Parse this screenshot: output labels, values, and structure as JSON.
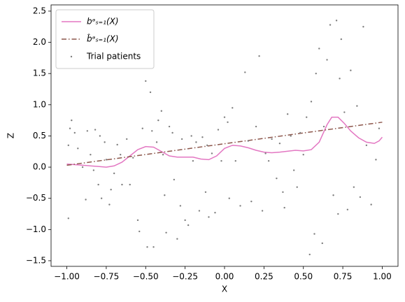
{
  "chart_data": {
    "type": "line_scatter",
    "xlabel": "X",
    "ylabel": "Z",
    "xlim": [
      -1.1,
      1.1
    ],
    "ylim": [
      -1.59,
      2.6
    ],
    "xticks": [
      {
        "value": -1,
        "label": "−1.00"
      },
      {
        "value": -0.75,
        "label": "−0.75"
      },
      {
        "value": -0.5,
        "label": "−0.50"
      },
      {
        "value": -0.25,
        "label": "−0.25"
      },
      {
        "value": 0,
        "label": "0.00"
      },
      {
        "value": 0.25,
        "label": "0.25"
      },
      {
        "value": 0.5,
        "label": "0.50"
      },
      {
        "value": 0.75,
        "label": "0.75"
      },
      {
        "value": 1,
        "label": "1.00"
      }
    ],
    "yticks": [
      {
        "value": -1.5,
        "label": "−1.5"
      },
      {
        "value": -1,
        "label": "−1.0"
      },
      {
        "value": -0.5,
        "label": "−0.5"
      },
      {
        "value": 0,
        "label": "0.0"
      },
      0.5,
      {
        "value": 1,
        "label": "1.0"
      },
      1.5,
      {
        "value": 2,
        "label": "2.0"
      },
      2.5
    ],
    "legend": "upper left",
    "series": [
      {
        "name": "bᵃₛ₌₁(X)",
        "kind": "line",
        "linestyle": "solid",
        "color": "#e377c2",
        "x": [
          -1,
          -0.9,
          -0.8,
          -0.75,
          -0.7,
          -0.65,
          -0.6,
          -0.55,
          -0.5,
          -0.45,
          -0.4,
          -0.35,
          -0.3,
          -0.2,
          -0.15,
          -0.1,
          -0.05,
          0,
          0.05,
          0.1,
          0.15,
          0.2,
          0.25,
          0.3,
          0.35,
          0.45,
          0.5,
          0.55,
          0.6,
          0.65,
          0.68,
          0.72,
          0.76,
          0.8,
          0.85,
          0.9,
          0.95,
          0.98,
          1.0
        ],
        "values": [
          0.05,
          0.03,
          0.01,
          0.0,
          0.02,
          0.08,
          0.18,
          0.28,
          0.33,
          0.32,
          0.25,
          0.18,
          0.16,
          0.16,
          0.13,
          0.12,
          0.18,
          0.3,
          0.35,
          0.34,
          0.31,
          0.27,
          0.24,
          0.23,
          0.24,
          0.27,
          0.26,
          0.28,
          0.4,
          0.68,
          0.8,
          0.8,
          0.7,
          0.58,
          0.47,
          0.4,
          0.38,
          0.42,
          0.48
        ]
      },
      {
        "name": "b̂ᵃₛ₌₁(X)",
        "kind": "line",
        "linestyle": "dashdot",
        "color": "#8c564b",
        "x": [
          -1,
          0,
          1
        ],
        "values": [
          0.03,
          0.375,
          0.72
        ]
      },
      {
        "name": "Trial patients",
        "kind": "scatter",
        "color": "#7f7f7f",
        "x": [
          -0.99,
          -0.98,
          -0.97,
          -0.99,
          -0.95,
          -0.93,
          -0.9,
          -0.88,
          -0.87,
          -0.85,
          -0.83,
          -0.82,
          -0.8,
          -0.79,
          -0.78,
          -0.76,
          -0.75,
          -0.73,
          -0.72,
          -0.7,
          -0.68,
          -0.66,
          -0.65,
          -0.62,
          -0.6,
          -0.58,
          -0.55,
          -0.54,
          -0.52,
          -0.5,
          -0.49,
          -0.47,
          -0.46,
          -0.45,
          -0.43,
          -0.42,
          -0.4,
          -0.39,
          -0.38,
          -0.37,
          -0.35,
          -0.33,
          -0.32,
          -0.3,
          -0.28,
          -0.27,
          -0.25,
          -0.23,
          -0.21,
          -0.2,
          -0.18,
          -0.16,
          -0.14,
          -0.12,
          -0.11,
          -0.1,
          -0.08,
          -0.06,
          -0.04,
          -0.02,
          0.0,
          0.02,
          0.03,
          0.05,
          0.07,
          0.1,
          0.13,
          0.15,
          0.17,
          0.2,
          0.22,
          0.24,
          0.26,
          0.28,
          0.3,
          0.33,
          0.35,
          0.37,
          0.38,
          0.4,
          0.42,
          0.44,
          0.46,
          0.48,
          0.5,
          0.52,
          0.54,
          0.55,
          0.57,
          0.58,
          0.6,
          0.62,
          0.63,
          0.65,
          0.67,
          0.69,
          0.71,
          0.72,
          0.73,
          0.74,
          0.76,
          0.78,
          0.8,
          0.82,
          0.84,
          0.86,
          0.88,
          0.9,
          0.93,
          0.96,
          0.98
        ],
        "values": [
          0.35,
          0.62,
          0.75,
          -0.82,
          0.55,
          0.3,
          0.0,
          -0.52,
          0.58,
          0.2,
          -0.05,
          0.6,
          -0.28,
          0.5,
          -0.5,
          0.4,
          0.12,
          -0.6,
          -0.36,
          -0.1,
          0.36,
          0.2,
          -0.28,
          0.45,
          -0.28,
          0.15,
          -0.85,
          -1.03,
          0.62,
          1.38,
          -1.28,
          1.2,
          0.58,
          -1.28,
          0.4,
          0.75,
          0.9,
          0.2,
          -0.45,
          -1.05,
          0.65,
          0.55,
          -0.2,
          -1.15,
          -0.62,
          0.45,
          -0.85,
          -0.93,
          0.5,
          0.1,
          0.4,
          -0.7,
          0.48,
          -0.4,
          0.35,
          -0.8,
          0.22,
          -0.73,
          0.6,
          0.1,
          0.8,
          0.72,
          -0.5,
          0.95,
          0.1,
          -0.62,
          1.52,
          0.42,
          -0.55,
          0.65,
          1.78,
          -0.7,
          0.22,
          0.1,
          0.45,
          -0.18,
          0.38,
          -0.4,
          -0.65,
          0.85,
          0.5,
          -0.05,
          -0.32,
          0.55,
          0.2,
          0.8,
          -1.4,
          1.05,
          -1.07,
          1.5,
          1.9,
          -1.22,
          0.65,
          1.72,
          2.28,
          -0.45,
          2.35,
          -0.75,
          1.42,
          2.05,
          0.88,
          -0.68,
          1.55,
          -0.32,
          0.98,
          -0.48,
          2.25,
          0.35,
          -0.6,
          0.12,
          0.62
        ]
      }
    ]
  }
}
